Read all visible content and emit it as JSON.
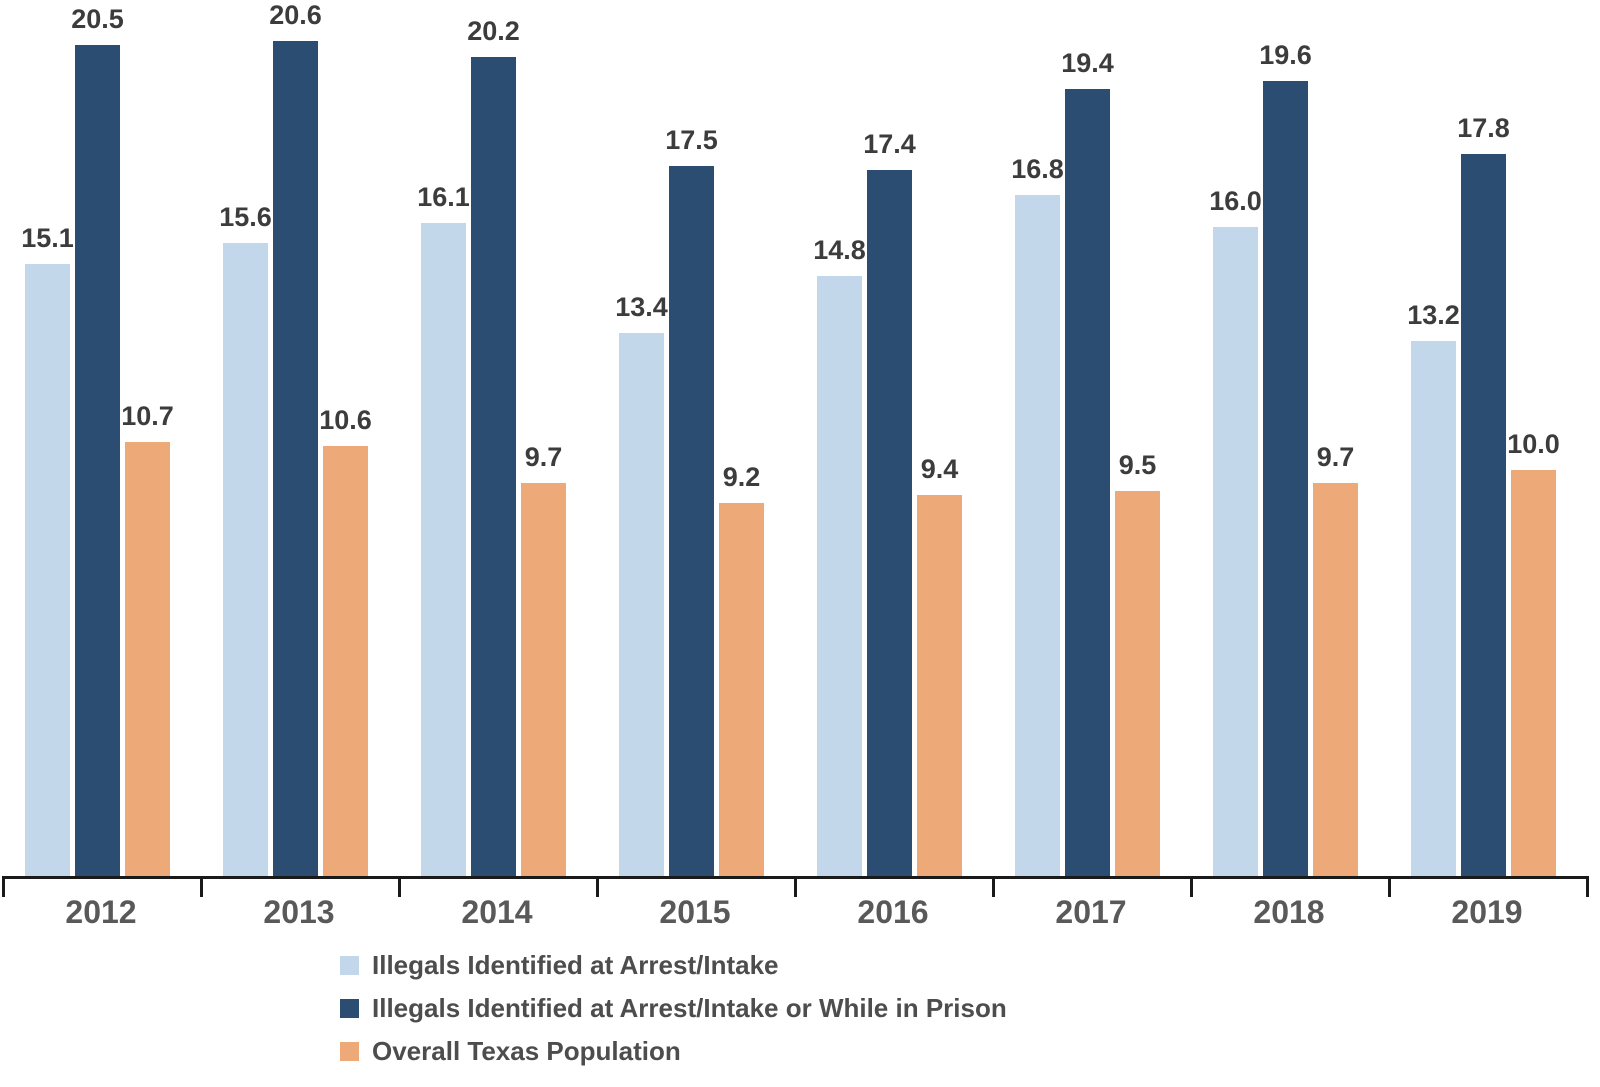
{
  "chart_data": {
    "type": "bar",
    "categories": [
      "2012",
      "2013",
      "2014",
      "2015",
      "2016",
      "2017",
      "2018",
      "2019"
    ],
    "series": [
      {
        "name": "Illegals Identified at Arrest/Intake",
        "color": "#C3D7EA",
        "values": [
          15.1,
          15.6,
          16.1,
          13.4,
          14.8,
          16.8,
          16.0,
          13.2
        ]
      },
      {
        "name": "Illegals Identified at Arrest/Intake or While in Prison",
        "color": "#2C4D72",
        "values": [
          20.5,
          20.6,
          20.2,
          17.5,
          17.4,
          19.4,
          19.6,
          17.8
        ]
      },
      {
        "name": "Overall Texas Population",
        "color": "#EEA979",
        "values": [
          10.7,
          10.6,
          9.7,
          9.2,
          9.4,
          9.5,
          9.7,
          10.0
        ]
      }
    ],
    "title": "",
    "xlabel": "",
    "ylabel": "",
    "ylim": [
      0,
      21.6
    ],
    "grid": false,
    "value_labels": true,
    "value_label_decimals": 1,
    "legend_position": "bottom-left",
    "colors": {
      "background": "#FFFFFF",
      "axis_line": "#1A1A1A",
      "value_label_text": "#3C3C3C",
      "category_label_text": "#595959",
      "legend_text": "#4D4D4D"
    }
  }
}
